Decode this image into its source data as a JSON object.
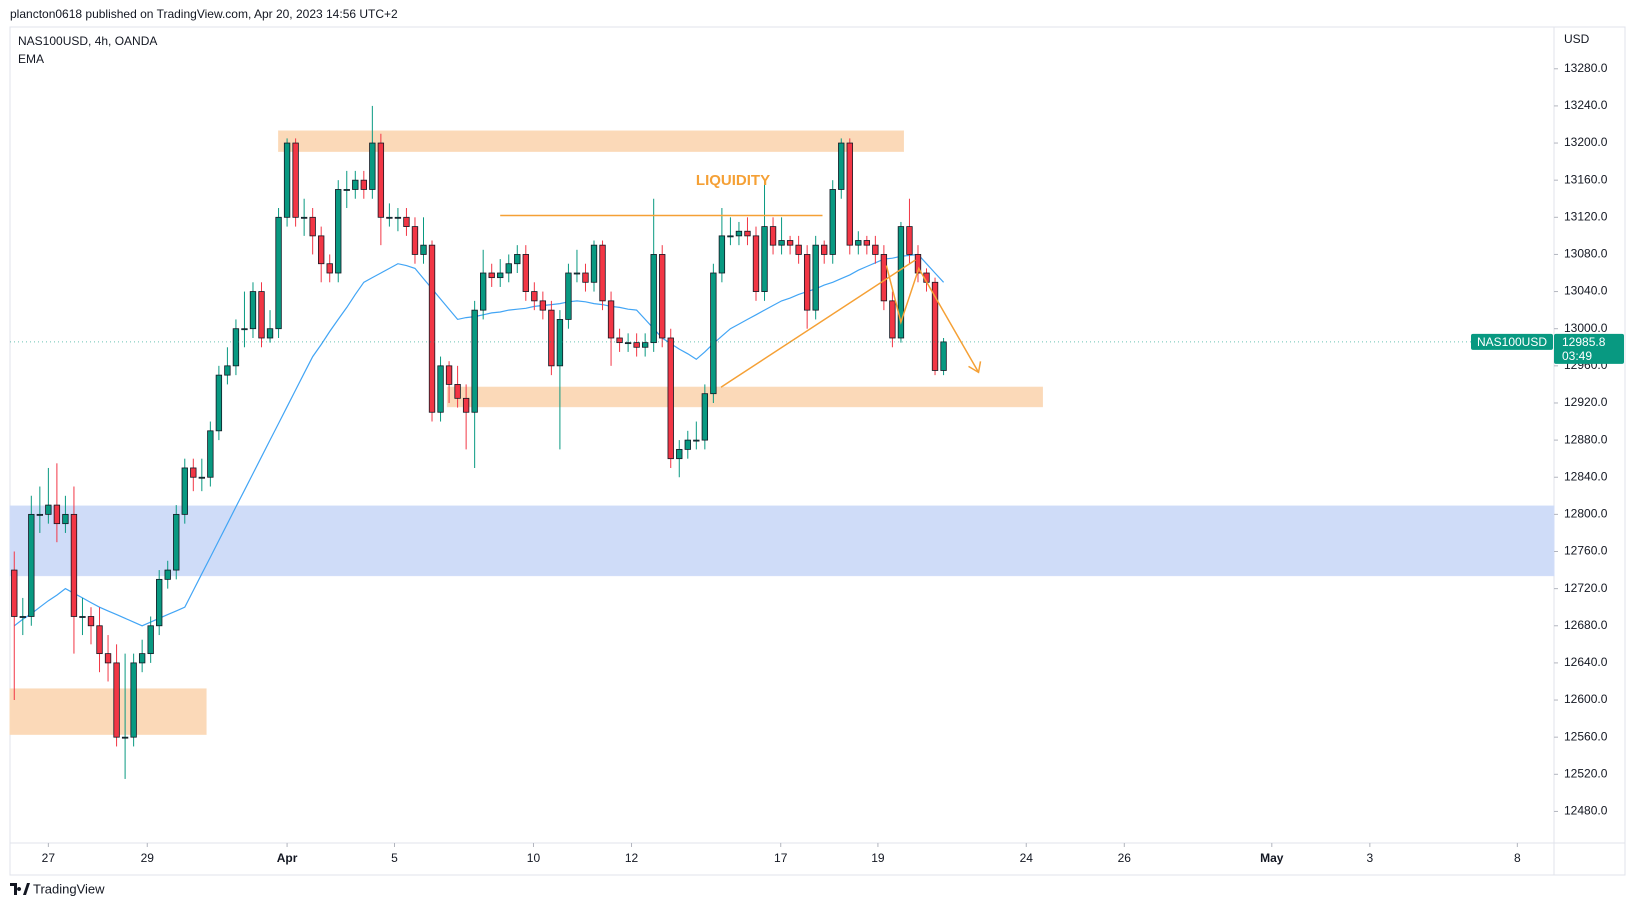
{
  "chart_data": {
    "type": "candlestick",
    "header": "plancton0618 published on TradingView.com, Apr 20, 2023 14:56 UTC+2",
    "symbol": "NAS100USD, 4h, OANDA",
    "indicator": "EMA",
    "currency": "USD",
    "brand": "TradingView",
    "annotation": "LIQUIDITY",
    "up_color": "#089981",
    "down_color": "#f23645",
    "grid": false,
    "open": [
      12740,
      12690,
      12690,
      12800,
      12800,
      12810,
      12790,
      12800,
      12690,
      12690,
      12680,
      12650,
      12640,
      12560,
      12560,
      12640,
      12650,
      12680,
      12730,
      12740,
      12800,
      12850,
      12840,
      12840,
      12890,
      12950,
      12960,
      13000,
      13000,
      13040,
      12990,
      13000,
      13120,
      13200,
      13120,
      13120,
      13100,
      13070,
      13060,
      13150,
      13150,
      13160,
      13150,
      13200,
      13120,
      13120,
      13120,
      13110,
      13080,
      13090,
      12910,
      12960,
      12940,
      12925,
      12910,
      13020,
      13060,
      13055,
      13060,
      13070,
      13080,
      13040,
      13030,
      13020,
      12960,
      13010,
      13060,
      13060,
      13050,
      13090,
      13030,
      12990,
      12985,
      12985,
      12980,
      12985,
      13080,
      12990,
      12860,
      12870,
      12880,
      12880,
      12930,
      13060,
      13100,
      13100,
      13105,
      13100,
      13040,
      13110,
      13090,
      13095,
      13090,
      13080,
      13020,
      13090,
      13080,
      13150,
      13200,
      13090,
      13095,
      13090,
      13080,
      13030,
      12990,
      13110,
      13080,
      13060,
      13050,
      12955
    ],
    "high": [
      12760,
      12710,
      12820,
      12830,
      12850,
      12855,
      12820,
      12830,
      12710,
      12700,
      12700,
      12670,
      12660,
      12650,
      12650,
      12665,
      12690,
      12740,
      12750,
      12810,
      12860,
      12860,
      12860,
      12900,
      12960,
      12980,
      13010,
      13040,
      13050,
      13050,
      13020,
      13130,
      13205,
      13205,
      13140,
      13130,
      13110,
      13080,
      13160,
      13170,
      13170,
      13170,
      13240,
      13210,
      13135,
      13130,
      13130,
      13120,
      13120,
      13095,
      12970,
      12965,
      12960,
      12940,
      13030,
      13085,
      13070,
      13075,
      13080,
      13090,
      13090,
      13050,
      13040,
      13030,
      13020,
      13070,
      13085,
      13070,
      13095,
      13095,
      13040,
      13000,
      12995,
      12995,
      12995,
      13140,
      13090,
      13000,
      12880,
      12890,
      12900,
      12940,
      13070,
      13130,
      13120,
      13115,
      13120,
      13110,
      13160,
      13120,
      13120,
      13100,
      13100,
      13090,
      13100,
      13095,
      13160,
      13205,
      13205,
      13105,
      13100,
      13100,
      13090,
      13040,
      13115,
      13140,
      13090,
      13065,
      13055,
      12990
    ],
    "low": [
      12600,
      12670,
      12680,
      12780,
      12790,
      12770,
      12780,
      12650,
      12670,
      12660,
      12630,
      12620,
      12550,
      12515,
      12550,
      12630,
      12640,
      12670,
      12720,
      12730,
      12790,
      12825,
      12825,
      12830,
      12880,
      12940,
      12950,
      12980,
      12990,
      12980,
      12985,
      12990,
      13110,
      13110,
      13100,
      13080,
      13050,
      13050,
      13050,
      13130,
      13140,
      13140,
      13140,
      13090,
      13110,
      13105,
      13100,
      13070,
      13070,
      12900,
      12900,
      12920,
      12915,
      12870,
      12850,
      13010,
      13045,
      13045,
      13050,
      13060,
      13030,
      13020,
      13010,
      12950,
      12870,
      13000,
      13050,
      13040,
      13040,
      13020,
      12960,
      12975,
      12975,
      12970,
      12970,
      12975,
      12980,
      12850,
      12840,
      12860,
      12870,
      12870,
      12920,
      13050,
      13090,
      13090,
      13090,
      13030,
      13030,
      13080,
      13080,
      13080,
      13070,
      13000,
      13010,
      13070,
      13070,
      13140,
      13080,
      13080,
      13080,
      13070,
      13020,
      12980,
      12985,
      13070,
      13050,
      13040,
      12950,
      12950
    ],
    "close": [
      12690,
      12690,
      12800,
      12800,
      12810,
      12790,
      12800,
      12690,
      12690,
      12680,
      12650,
      12640,
      12560,
      12560,
      12640,
      12650,
      12680,
      12730,
      12740,
      12800,
      12850,
      12840,
      12840,
      12890,
      12950,
      12960,
      13000,
      13000,
      13040,
      12990,
      13000,
      13120,
      13200,
      13120,
      13120,
      13100,
      13070,
      13060,
      13150,
      13150,
      13160,
      13150,
      13200,
      13120,
      13120,
      13120,
      13110,
      13080,
      13090,
      12910,
      12960,
      12940,
      12925,
      12910,
      13020,
      13060,
      13055,
      13060,
      13070,
      13080,
      13040,
      13030,
      13020,
      12960,
      13010,
      13060,
      13060,
      13050,
      13090,
      13030,
      12990,
      12985,
      12985,
      12980,
      12985,
      13080,
      12990,
      12860,
      12870,
      12880,
      12880,
      12930,
      13060,
      13100,
      13100,
      13105,
      13100,
      13040,
      13110,
      13090,
      13095,
      13090,
      13080,
      13020,
      13090,
      13080,
      13150,
      13200,
      13090,
      13095,
      13090,
      13080,
      13030,
      12990,
      13110,
      13080,
      13060,
      13050,
      12955,
      12985.8
    ],
    "ema": {
      "color": "#42a5f5",
      "values": [
        12680,
        12687,
        12693,
        12700,
        12707,
        12713,
        12720,
        12715,
        12710,
        12705,
        12700,
        12696,
        12692,
        12688,
        12684,
        12680,
        12684,
        12688,
        12692,
        12696,
        12700,
        12718,
        12736,
        12754,
        12772,
        12790,
        12808,
        12826,
        12844,
        12862,
        12880,
        12898,
        12916,
        12934,
        12952,
        12970,
        12983,
        12997,
        13010,
        13023,
        13037,
        13050,
        13055,
        13060,
        13065,
        13070,
        13068,
        13065,
        13054,
        13043,
        13032,
        13021,
        13010,
        13012,
        13013,
        13015,
        13017,
        13018,
        13020,
        13021,
        13022,
        13024,
        13025,
        13026,
        13027,
        13029,
        13030,
        13029,
        13027,
        13026,
        13024,
        13023,
        13021,
        13020,
        13010,
        13000,
        12990,
        12984,
        12978,
        12973,
        12967,
        12975,
        12984,
        12992,
        13000,
        13005,
        13010,
        13015,
        13020,
        13025,
        13030,
        13033,
        13037,
        13040,
        13043,
        13047,
        13050,
        13054,
        13058,
        13063,
        13067,
        13071,
        13075,
        13076,
        13078,
        13079,
        13080,
        13070,
        13060,
        13050
      ]
    },
    "zones": [
      {
        "x": [
          31.0,
          104.3
        ],
        "y": [
          13191,
          13213
        ],
        "color": "#fbd9b8"
      },
      {
        "x": [
          50.8,
          120.6
        ],
        "y": [
          12916,
          12937
        ],
        "color": "#fbd9b8"
      },
      {
        "x": [
          -0.5,
          22.5
        ],
        "y": [
          12563,
          12612
        ],
        "color": "#fbd9b8"
      },
      {
        "y": [
          12734,
          12809
        ],
        "color": "#cfdcf8"
      }
    ],
    "lines": [
      {
        "x": [
          57.0,
          94.8
        ],
        "y": [
          13122,
          13122
        ],
        "color": "#f5a035"
      },
      {
        "x": [
          82.9,
          105.7
        ],
        "y": [
          12937,
          13074
        ],
        "color": "#f5a035"
      },
      {
        "x": [
          102.3,
          104.0,
          106.1,
          113.1
        ],
        "y": [
          13068,
          13007,
          13065,
          12953
        ],
        "color": "#f5a035"
      }
    ],
    "last_price": {
      "symbol": "NAS100USD",
      "value": 12985.8,
      "countdown": "03:49"
    },
    "xlim": [
      -0.5,
      180.6
    ],
    "xticks": [
      {
        "value": 4.0,
        "label": "27"
      },
      {
        "value": 15.6,
        "label": "29"
      },
      {
        "value": 32.0,
        "label": "Apr"
      },
      {
        "value": 44.6,
        "label": "5"
      },
      {
        "value": 60.9,
        "label": "10"
      },
      {
        "value": 72.4,
        "label": "12"
      },
      {
        "value": 89.9,
        "label": "17"
      },
      {
        "value": 101.3,
        "label": "19"
      },
      {
        "value": 118.7,
        "label": "24"
      },
      {
        "value": 130.2,
        "label": "26"
      },
      {
        "value": 147.5,
        "label": "May"
      },
      {
        "value": 159.0,
        "label": "3"
      },
      {
        "value": 176.3,
        "label": "8"
      }
    ],
    "ylim": [
      12446,
      13325
    ],
    "yticks": [
      {
        "value": 12480,
        "label": "12480.0"
      },
      {
        "value": 12520,
        "label": "12520.0"
      },
      {
        "value": 12560,
        "label": "12560.0"
      },
      {
        "value": 12600,
        "label": "12600.0"
      },
      {
        "value": 12640,
        "label": "12640.0"
      },
      {
        "value": 12680,
        "label": "12680.0"
      },
      {
        "value": 12720,
        "label": "12720.0"
      },
      {
        "value": 12760,
        "label": "12760.0"
      },
      {
        "value": 12800,
        "label": "12800.0"
      },
      {
        "value": 12840,
        "label": "12840.0"
      },
      {
        "value": 12880,
        "label": "12880.0"
      },
      {
        "value": 12920,
        "label": "12920.0"
      },
      {
        "value": 12960,
        "label": "12960.0"
      },
      {
        "value": 13000,
        "label": "13000.0"
      },
      {
        "value": 13040,
        "label": "13040.0"
      },
      {
        "value": 13080,
        "label": "13080.0"
      },
      {
        "value": 13120,
        "label": "13120.0"
      },
      {
        "value": 13160,
        "label": "13160.0"
      },
      {
        "value": 13200,
        "label": "13200.0"
      },
      {
        "value": 13240,
        "label": "13240.0"
      },
      {
        "value": 13280,
        "label": "13280.0"
      }
    ]
  }
}
